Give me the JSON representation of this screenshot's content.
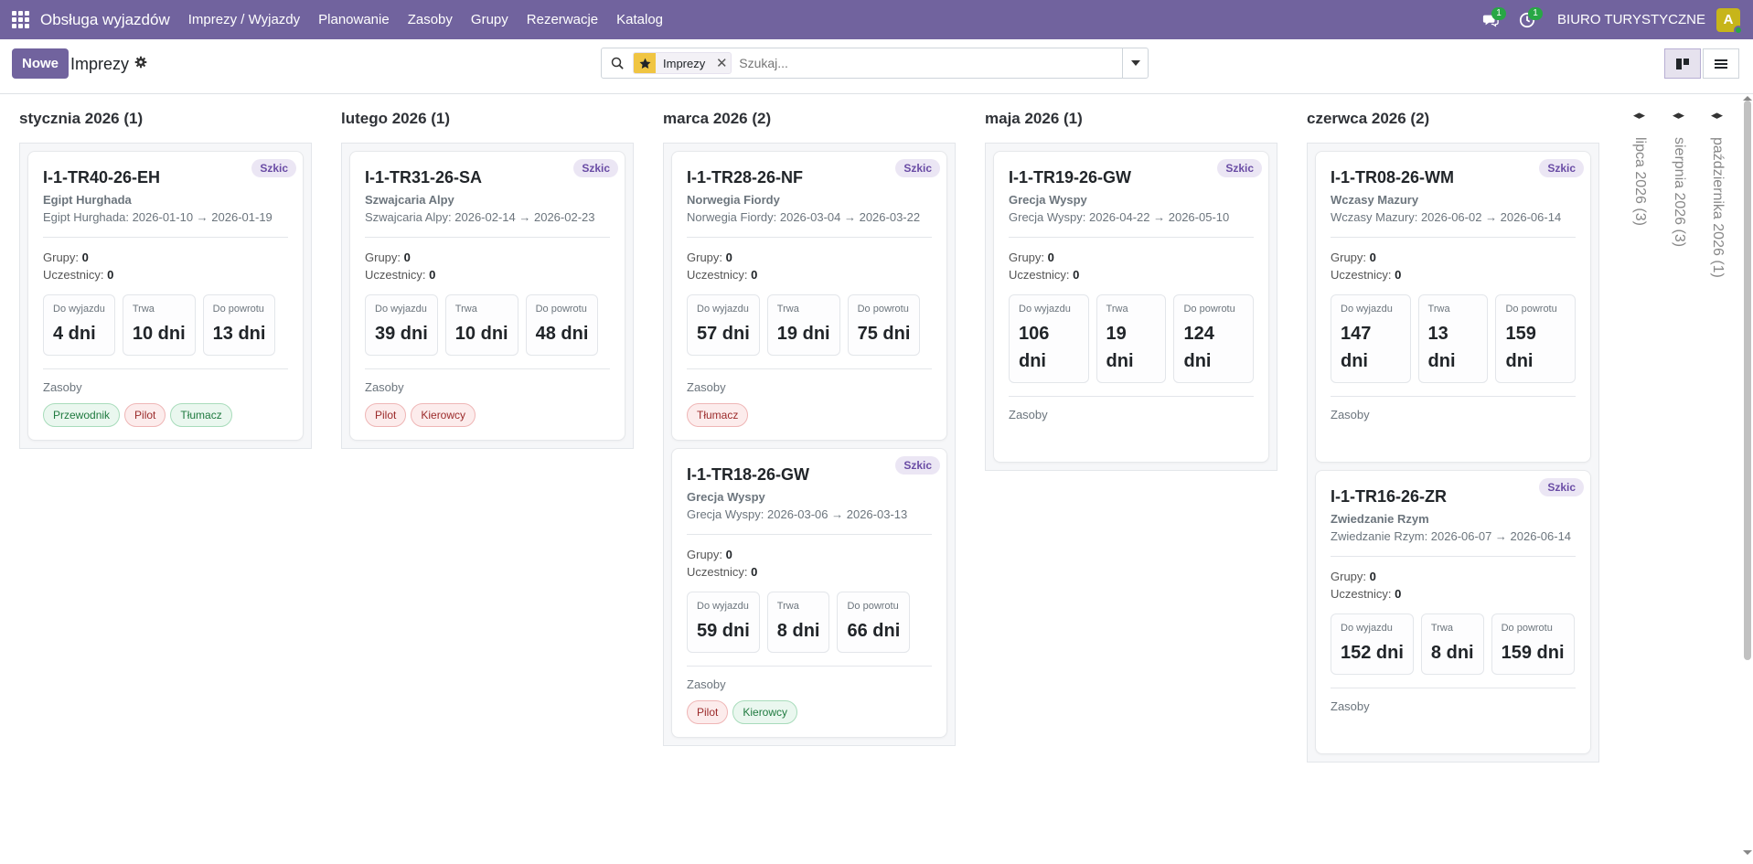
{
  "navbar": {
    "brand": "Obsługa wyjazdów",
    "menu": [
      "Imprezy / Wyjazdy",
      "Planowanie",
      "Zasoby",
      "Grupy",
      "Rezerwacje",
      "Katalog"
    ],
    "messages_badge": "1",
    "activities_badge": "1",
    "company": "BIURO TURYSTYCZNE",
    "avatar_letter": "A",
    "accent": "#71639e"
  },
  "control": {
    "new_label": "Nowe",
    "title": "Imprezy",
    "facet_label": "Imprezy",
    "search_placeholder": "Szukaj..."
  },
  "columns": [
    {
      "title": "stycznia 2026 (1)",
      "cards": [
        {
          "code": "I-1-TR40-26-EH",
          "status": "Szkic",
          "dest": "Egipt Hurghada",
          "route": "Egipt Hurghada: 2026-01-10 → 2026-01-19",
          "groups_label": "Grupy:",
          "groups": "0",
          "participants_label": "Uczestnicy:",
          "participants": "0",
          "stats": [
            {
              "label": "Do wyjazdu",
              "value": "4 dni"
            },
            {
              "label": "Trwa",
              "value": "10 dni"
            },
            {
              "label": "Do powrotu",
              "value": "13 dni"
            }
          ],
          "resources_label": "Zasoby",
          "tags": [
            {
              "text": "Przewodnik",
              "tone": "green"
            },
            {
              "text": "Pilot",
              "tone": "red"
            },
            {
              "text": "Tłumacz",
              "tone": "green"
            }
          ]
        }
      ]
    },
    {
      "title": "lutego 2026 (1)",
      "cards": [
        {
          "code": "I-1-TR31-26-SA",
          "status": "Szkic",
          "dest": "Szwajcaria Alpy",
          "route": "Szwajcaria Alpy: 2026-02-14 → 2026-02-23",
          "groups_label": "Grupy:",
          "groups": "0",
          "participants_label": "Uczestnicy:",
          "participants": "0",
          "stats": [
            {
              "label": "Do wyjazdu",
              "value": "39 dni"
            },
            {
              "label": "Trwa",
              "value": "10 dni"
            },
            {
              "label": "Do powrotu",
              "value": "48 dni"
            }
          ],
          "resources_label": "Zasoby",
          "tags": [
            {
              "text": "Pilot",
              "tone": "red"
            },
            {
              "text": "Kierowcy",
              "tone": "red"
            }
          ]
        }
      ]
    },
    {
      "title": "marca 2026 (2)",
      "cards": [
        {
          "code": "I-1-TR28-26-NF",
          "status": "Szkic",
          "dest": "Norwegia Fiordy",
          "route": "Norwegia Fiordy: 2026-03-04 → 2026-03-22",
          "groups_label": "Grupy:",
          "groups": "0",
          "participants_label": "Uczestnicy:",
          "participants": "0",
          "stats": [
            {
              "label": "Do wyjazdu",
              "value": "57 dni"
            },
            {
              "label": "Trwa",
              "value": "19 dni"
            },
            {
              "label": "Do powrotu",
              "value": "75 dni"
            }
          ],
          "resources_label": "Zasoby",
          "tags": [
            {
              "text": "Tłumacz",
              "tone": "red"
            }
          ]
        },
        {
          "code": "I-1-TR18-26-GW",
          "status": "Szkic",
          "dest": "Grecja Wyspy",
          "route": "Grecja Wyspy: 2026-03-06 → 2026-03-13",
          "groups_label": "Grupy:",
          "groups": "0",
          "participants_label": "Uczestnicy:",
          "participants": "0",
          "stats": [
            {
              "label": "Do wyjazdu",
              "value": "59 dni"
            },
            {
              "label": "Trwa",
              "value": "8 dni"
            },
            {
              "label": "Do powrotu",
              "value": "66 dni"
            }
          ],
          "resources_label": "Zasoby",
          "tags": [
            {
              "text": "Pilot",
              "tone": "red"
            },
            {
              "text": "Kierowcy",
              "tone": "green"
            }
          ]
        }
      ]
    },
    {
      "title": "maja 2026 (1)",
      "cards": [
        {
          "code": "I-1-TR19-26-GW",
          "status": "Szkic",
          "dest": "Grecja Wyspy",
          "route": "Grecja Wyspy: 2026-04-22 → 2026-05-10",
          "groups_label": "Grupy:",
          "groups": "0",
          "participants_label": "Uczestnicy:",
          "participants": "0",
          "stats": [
            {
              "label": "Do wyjazdu",
              "value": "106 dni"
            },
            {
              "label": "Trwa",
              "value": "19 dni"
            },
            {
              "label": "Do powrotu",
              "value": "124 dni"
            }
          ],
          "resources_label": "Zasoby",
          "tags": []
        }
      ]
    },
    {
      "title": "czerwca 2026 (2)",
      "cards": [
        {
          "code": "I-1-TR08-26-WM",
          "status": "Szkic",
          "dest": "Wczasy Mazury",
          "route": "Wczasy Mazury: 2026-06-02 → 2026-06-14",
          "groups_label": "Grupy:",
          "groups": "0",
          "participants_label": "Uczestnicy:",
          "participants": "0",
          "stats": [
            {
              "label": "Do wyjazdu",
              "value": "147 dni"
            },
            {
              "label": "Trwa",
              "value": "13 dni"
            },
            {
              "label": "Do powrotu",
              "value": "159 dni"
            }
          ],
          "resources_label": "Zasoby",
          "tags": []
        },
        {
          "code": "I-1-TR16-26-ZR",
          "status": "Szkic",
          "dest": "Zwiedzanie Rzym",
          "route": "Zwiedzanie Rzym: 2026-06-07 → 2026-06-14",
          "groups_label": "Grupy:",
          "groups": "0",
          "participants_label": "Uczestnicy:",
          "participants": "0",
          "stats": [
            {
              "label": "Do wyjazdu",
              "value": "152 dni"
            },
            {
              "label": "Trwa",
              "value": "8 dni"
            },
            {
              "label": "Do powrotu",
              "value": "159 dni"
            }
          ],
          "resources_label": "Zasoby",
          "tags": []
        }
      ]
    }
  ],
  "folded_columns": [
    "lipca 2026 (3)",
    "sierpnia 2026 (3)",
    "października 2026 (1)"
  ]
}
